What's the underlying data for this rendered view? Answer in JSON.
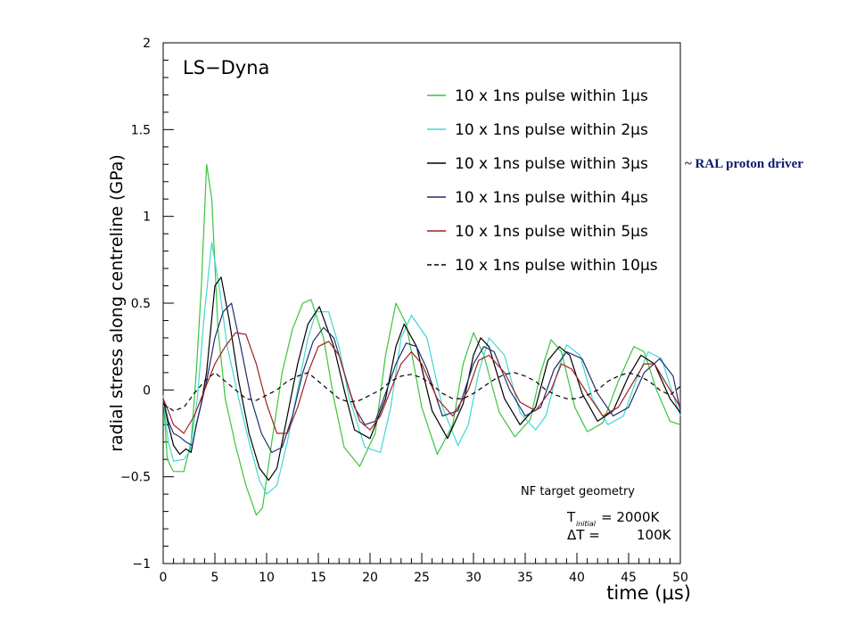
{
  "annotation": "~ RAL proton driver",
  "chart_data": {
    "type": "line",
    "title": "LS−Dyna",
    "xlabel": "time (μs)",
    "ylabel": "radial stress along centreline (GPa)",
    "xlim": [
      0,
      50
    ],
    "ylim": [
      -1,
      2
    ],
    "x_ticks": [
      0,
      5,
      10,
      15,
      20,
      25,
      30,
      35,
      40,
      45,
      50
    ],
    "y_ticks": [
      -1,
      -0.5,
      0,
      0.5,
      1,
      1.5,
      2
    ],
    "x_tick_labels": [
      "0",
      "5",
      "10",
      "15",
      "20",
      "25",
      "30",
      "35",
      "40",
      "45",
      "50"
    ],
    "y_tick_labels": [
      "−1",
      "−0.5",
      "0",
      "0.5",
      "1",
      "1.5",
      "2"
    ],
    "grid": false,
    "legend_position": "top-right",
    "notes": {
      "geometry": "NF target geometry",
      "t_initial_main": "T",
      "t_initial_sub": "initial",
      "t_initial_value": "= 2000K",
      "delta_t_label": "ΔT =",
      "delta_t_value": "100K"
    },
    "series": [
      {
        "name": "10 x 1ns pulse within 1μs",
        "color": "#3cc43c",
        "dash": "solid",
        "x": [
          0,
          0.4,
          1,
          2,
          2.7,
          3.2,
          3.7,
          4.2,
          4.7,
          5.3,
          6,
          7,
          8,
          9,
          9.6,
          10.5,
          11.5,
          12.5,
          13.5,
          14.3,
          15.5,
          16.5,
          17.5,
          19,
          20.5,
          21.5,
          22.5,
          23.5,
          25,
          26.5,
          28,
          29,
          30,
          31,
          32.5,
          34,
          35.5,
          36.5,
          37.5,
          38.5,
          39.8,
          41,
          42.5,
          44,
          45.5,
          46.5,
          47.7,
          49,
          50
        ],
        "y": [
          -0.03,
          -0.4,
          -0.47,
          -0.47,
          -0.3,
          0.1,
          0.6,
          1.3,
          1.1,
          0.35,
          -0.05,
          -0.32,
          -0.55,
          -0.72,
          -0.68,
          -0.3,
          0.1,
          0.35,
          0.5,
          0.52,
          0.3,
          -0.05,
          -0.33,
          -0.44,
          -0.25,
          0.2,
          0.5,
          0.38,
          -0.1,
          -0.37,
          -0.2,
          0.15,
          0.33,
          0.2,
          -0.13,
          -0.27,
          -0.17,
          0.1,
          0.29,
          0.22,
          -0.1,
          -0.24,
          -0.19,
          0.05,
          0.25,
          0.22,
          0.0,
          -0.18,
          -0.2
        ]
      },
      {
        "name": "10 x 1ns pulse within 2μs",
        "color": "#40d8d0",
        "dash": "solid",
        "x": [
          0,
          0.5,
          1,
          2,
          2.6,
          3.3,
          4,
          4.7,
          5.4,
          6.2,
          7.3,
          8.3,
          9.3,
          10,
          11,
          12,
          13,
          14,
          14.8,
          16,
          17,
          18,
          19.5,
          21,
          22,
          23,
          24,
          25.5,
          27,
          28.5,
          29.5,
          30.5,
          31.5,
          33,
          34.5,
          36,
          37,
          38,
          39,
          40.3,
          41.5,
          43,
          44.5,
          45.7,
          46.9,
          48.2,
          49.3,
          50
        ],
        "y": [
          -0.05,
          -0.3,
          -0.41,
          -0.4,
          -0.35,
          -0.05,
          0.45,
          0.85,
          0.6,
          0.25,
          -0.05,
          -0.3,
          -0.52,
          -0.6,
          -0.55,
          -0.3,
          0.0,
          0.3,
          0.45,
          0.45,
          0.25,
          -0.05,
          -0.33,
          -0.36,
          -0.1,
          0.3,
          0.43,
          0.3,
          -0.1,
          -0.32,
          -0.2,
          0.1,
          0.3,
          0.2,
          -0.13,
          -0.23,
          -0.15,
          0.08,
          0.26,
          0.2,
          -0.05,
          -0.2,
          -0.15,
          0.05,
          0.22,
          0.18,
          -0.03,
          -0.15
        ]
      },
      {
        "name": "10 x 1ns pulse within 3μs",
        "color": "#000000",
        "dash": "solid",
        "x": [
          0,
          0.5,
          1,
          1.6,
          2.2,
          2.7,
          3.2,
          3.6,
          4.2,
          5,
          5.6,
          6.4,
          7.3,
          8.3,
          9.3,
          10.2,
          11,
          12,
          13,
          14,
          15.1,
          16.5,
          17.5,
          18.5,
          20,
          21.5,
          22.5,
          23.3,
          24.5,
          26,
          27.5,
          29,
          30,
          30.7,
          31.5,
          33,
          34.5,
          36,
          37.2,
          38.3,
          39.3,
          40.5,
          42,
          43.5,
          45,
          46.2,
          47.5,
          49,
          50
        ],
        "y": [
          -0.05,
          -0.2,
          -0.32,
          -0.37,
          -0.34,
          -0.36,
          -0.2,
          -0.1,
          0.1,
          0.6,
          0.65,
          0.4,
          0.05,
          -0.25,
          -0.45,
          -0.52,
          -0.45,
          -0.15,
          0.15,
          0.38,
          0.48,
          0.25,
          0.0,
          -0.23,
          -0.28,
          -0.05,
          0.25,
          0.38,
          0.25,
          -0.12,
          -0.28,
          -0.08,
          0.2,
          0.3,
          0.25,
          -0.05,
          -0.2,
          -0.1,
          0.17,
          0.25,
          0.2,
          -0.02,
          -0.18,
          -0.12,
          0.08,
          0.2,
          0.15,
          -0.05,
          -0.13
        ]
      },
      {
        "name": "10 x 1ns pulse within 4μs",
        "color": "#1f2e6e",
        "dash": "solid",
        "x": [
          0,
          0.5,
          1,
          1.6,
          2.2,
          2.8,
          3.4,
          4.2,
          5,
          5.8,
          6.6,
          7.5,
          8.5,
          9.5,
          10.5,
          11.5,
          12.5,
          13.5,
          14.5,
          15.5,
          16.5,
          17.5,
          18.5,
          19.5,
          20.5,
          21.5,
          22.5,
          23.5,
          24.5,
          25.5,
          27,
          28.5,
          30,
          31,
          32,
          33.5,
          35,
          36.5,
          37.8,
          39,
          40.5,
          42,
          43.5,
          45,
          46.5,
          48,
          49.3,
          50
        ],
        "y": [
          -0.05,
          -0.18,
          -0.25,
          -0.27,
          -0.3,
          -0.32,
          -0.15,
          0.05,
          0.3,
          0.45,
          0.5,
          0.25,
          -0.05,
          -0.25,
          -0.36,
          -0.33,
          -0.15,
          0.1,
          0.28,
          0.36,
          0.3,
          0.1,
          -0.1,
          -0.2,
          -0.18,
          -0.02,
          0.15,
          0.27,
          0.25,
          0.12,
          -0.15,
          -0.12,
          0.15,
          0.25,
          0.22,
          0.0,
          -0.15,
          -0.1,
          0.12,
          0.22,
          0.18,
          -0.02,
          -0.15,
          -0.1,
          0.1,
          0.18,
          0.08,
          -0.12
        ]
      },
      {
        "name": "10 x 1ns pulse within 5μs",
        "color": "#a02020",
        "dash": "solid",
        "x": [
          0,
          0.5,
          1,
          2,
          3,
          4,
          5,
          6,
          7,
          8,
          9,
          10,
          11,
          12,
          13,
          14,
          15,
          16,
          17,
          18,
          19,
          20,
          21,
          22,
          23,
          24,
          25,
          26.5,
          28,
          29.5,
          30.5,
          31.5,
          33,
          34.5,
          36,
          37.5,
          38.5,
          39.5,
          41,
          42.5,
          44,
          45.5,
          46.5,
          47.5,
          49,
          50
        ],
        "y": [
          -0.05,
          -0.12,
          -0.2,
          -0.25,
          -0.15,
          0.0,
          0.15,
          0.25,
          0.33,
          0.32,
          0.15,
          -0.08,
          -0.25,
          -0.25,
          -0.1,
          0.1,
          0.25,
          0.28,
          0.2,
          0.0,
          -0.18,
          -0.23,
          -0.15,
          0.0,
          0.15,
          0.22,
          0.15,
          -0.05,
          -0.15,
          0.0,
          0.17,
          0.2,
          0.1,
          -0.07,
          -0.12,
          0.0,
          0.15,
          0.12,
          -0.02,
          -0.15,
          -0.1,
          0.05,
          0.15,
          0.15,
          0.0,
          -0.1
        ]
      },
      {
        "name": "10 x 1ns pulse within 10μs",
        "color": "#000000",
        "dash": "dashed",
        "x": [
          0,
          1,
          2,
          3,
          4,
          5,
          6,
          7,
          8,
          9,
          10,
          11,
          12,
          13,
          14,
          15,
          16,
          17,
          18,
          19,
          20,
          21,
          22,
          23,
          24,
          25,
          26,
          27,
          28,
          29,
          30,
          31,
          32,
          33,
          34,
          35,
          36,
          37,
          38,
          39,
          40,
          41,
          42,
          43,
          44,
          45,
          46,
          47,
          48,
          49,
          50
        ],
        "y": [
          -0.08,
          -0.12,
          -0.1,
          -0.02,
          0.05,
          0.1,
          0.05,
          0.0,
          -0.05,
          -0.06,
          -0.03,
          0.0,
          0.05,
          0.08,
          0.1,
          0.05,
          0.0,
          -0.05,
          -0.07,
          -0.06,
          -0.03,
          0.0,
          0.05,
          0.08,
          0.09,
          0.07,
          0.03,
          -0.02,
          -0.05,
          -0.05,
          -0.02,
          0.02,
          0.06,
          0.09,
          0.1,
          0.08,
          0.05,
          0.0,
          -0.03,
          -0.05,
          -0.05,
          -0.03,
          0.0,
          0.05,
          0.08,
          0.1,
          0.08,
          0.05,
          0.0,
          -0.03,
          0.02
        ]
      }
    ]
  }
}
